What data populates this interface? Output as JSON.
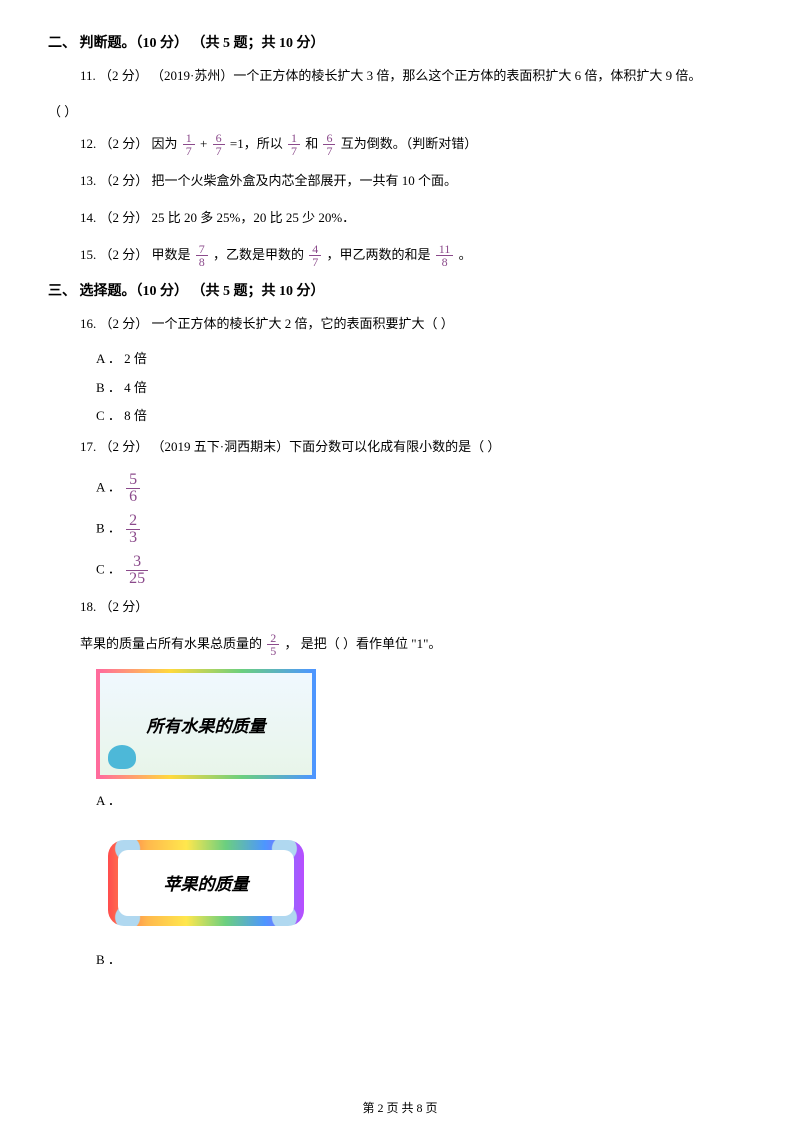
{
  "section2": {
    "title": "二、 判断题。（10 分） （共 5 题；共 10 分）",
    "q11": "11. （2 分） （2019·苏州）一个正方体的棱长扩大 3 倍，那么这个正方体的表面积扩大 6 倍，体积扩大 9 倍。",
    "q11_tail": "（      ）",
    "q12_a": "12. （2 分） 因为 ",
    "q12_b": " + ",
    "q12_c": " =1，所以 ",
    "q12_d": " 和 ",
    "q12_e": " 互为倒数。（判断对错）",
    "q13": "13. （2 分） 把一个火柴盒外盒及内芯全部展开，一共有 10 个面。",
    "q14": "14. （2 分） 25 比 20 多 25%，20 比 25 少 20%．",
    "q15_a": "15. （2 分） 甲数是 ",
    "q15_b": " ，乙数是甲数的 ",
    "q15_c": " ，甲乙两数的和是 ",
    "q15_d": " 。"
  },
  "section3": {
    "title": "三、 选择题。（10 分） （共 5 题；共 10 分）",
    "q16": "16. （2 分） 一个正方体的棱长扩大 2 倍，它的表面积要扩大（      ）",
    "q16_a": "A ． 2 倍",
    "q16_b": "B ． 4 倍",
    "q16_c": "C ． 8 倍",
    "q17": "17. （2 分） （2019 五下·洞西期末）下面分数可以化成有限小数的是（      ）",
    "q17_a": "A ．",
    "q17_b": "B ．",
    "q17_c": "C ．",
    "q18": "18. （2 分）",
    "q18_text_a": "苹果的质量占所有水果总质量的 ",
    "q18_text_b": " ， 是把（      ）看作单位 \"1\"。",
    "q18_opt_a": "A ．",
    "q18_opt_b": "B ．",
    "box1_text": "所有水果的质量",
    "box2_text": "苹果的质量"
  },
  "fractions": {
    "f1_7_n": "1",
    "f1_7_d": "7",
    "f6_7_n": "6",
    "f6_7_d": "7",
    "f7_8_n": "7",
    "f7_8_d": "8",
    "f4_7_n": "4",
    "f4_7_d": "7",
    "f11_8_n": "11",
    "f11_8_d": "8",
    "f5_6_n": "5",
    "f5_6_d": "6",
    "f2_3_n": "2",
    "f2_3_d": "3",
    "f3_25_n": "3",
    "f3_25_d": "25",
    "f2_5_n": "2",
    "f2_5_d": "5"
  },
  "footer": "第 2 页 共 8 页",
  "colors": {
    "text": "#000000",
    "fraction": "#8b4a8b",
    "background": "#ffffff"
  }
}
